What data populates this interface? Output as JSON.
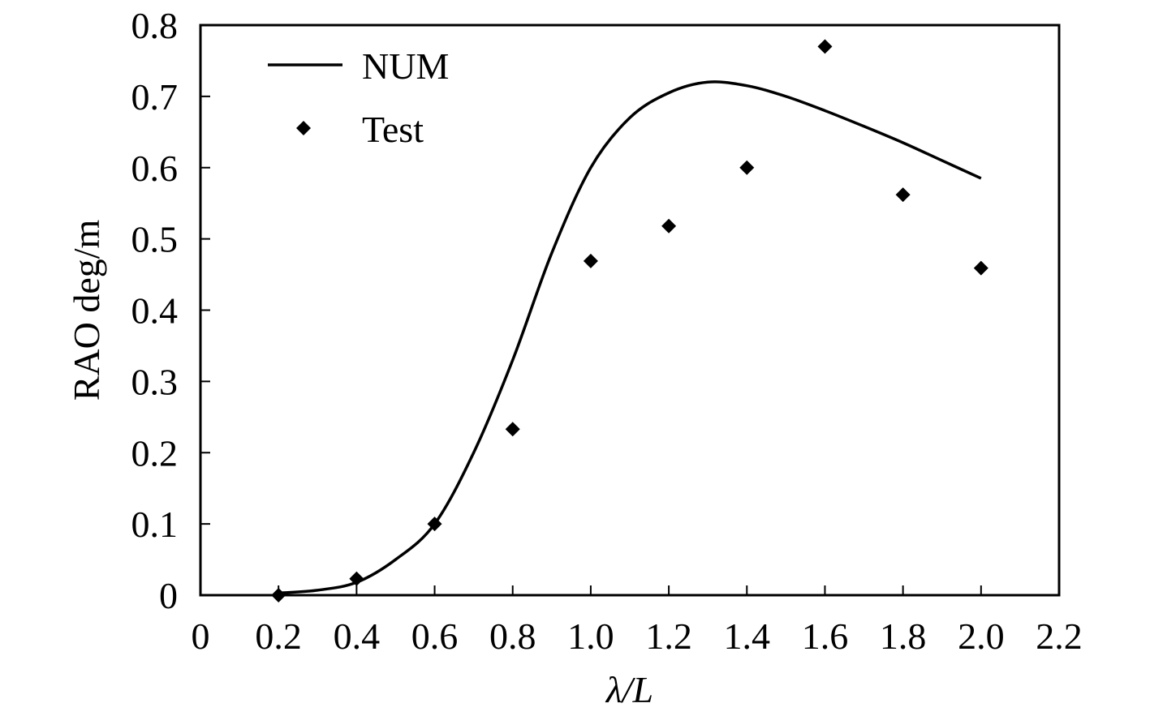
{
  "chart_data": {
    "type": "line",
    "title": "",
    "xlabel": "λ/L",
    "ylabel": "RAO deg/m",
    "xlim": [
      0,
      2.2
    ],
    "ylim": [
      0,
      0.8
    ],
    "x_ticks": [
      0,
      0.2,
      0.4,
      0.6,
      0.8,
      1.0,
      1.2,
      1.4,
      1.6,
      1.8,
      2.0,
      2.2
    ],
    "x_tick_labels": [
      "0",
      "0.2",
      "0.4",
      "0.6",
      "0.8",
      "1.0",
      "1.2",
      "1.4",
      "1.6",
      "1.8",
      "2.0",
      "2.2"
    ],
    "y_ticks": [
      0,
      0.1,
      0.2,
      0.3,
      0.4,
      0.5,
      0.6,
      0.7,
      0.8
    ],
    "y_tick_labels": [
      "0",
      "0.1",
      "0.2",
      "0.3",
      "0.4",
      "0.5",
      "0.6",
      "0.7",
      "0.8"
    ],
    "grid": false,
    "legend_position": "top-left",
    "series": [
      {
        "name": "NUM",
        "style": "line",
        "color": "#000000",
        "x": [
          0.2,
          0.3,
          0.4,
          0.5,
          0.6,
          0.7,
          0.8,
          0.9,
          1.0,
          1.1,
          1.2,
          1.3,
          1.4,
          1.5,
          1.6,
          1.7,
          1.8,
          1.9,
          2.0
        ],
        "y": [
          0.003,
          0.007,
          0.018,
          0.05,
          0.1,
          0.2,
          0.33,
          0.48,
          0.6,
          0.67,
          0.705,
          0.72,
          0.715,
          0.7,
          0.68,
          0.658,
          0.635,
          0.61,
          0.585
        ]
      },
      {
        "name": "Test",
        "style": "marker",
        "marker": "diamond",
        "color": "#000000",
        "x": [
          0.2,
          0.4,
          0.6,
          0.8,
          1.0,
          1.2,
          1.4,
          1.6,
          1.8,
          2.0
        ],
        "y": [
          0.0,
          0.023,
          0.1,
          0.233,
          0.469,
          0.518,
          0.6,
          0.77,
          0.562,
          0.459
        ]
      }
    ]
  }
}
